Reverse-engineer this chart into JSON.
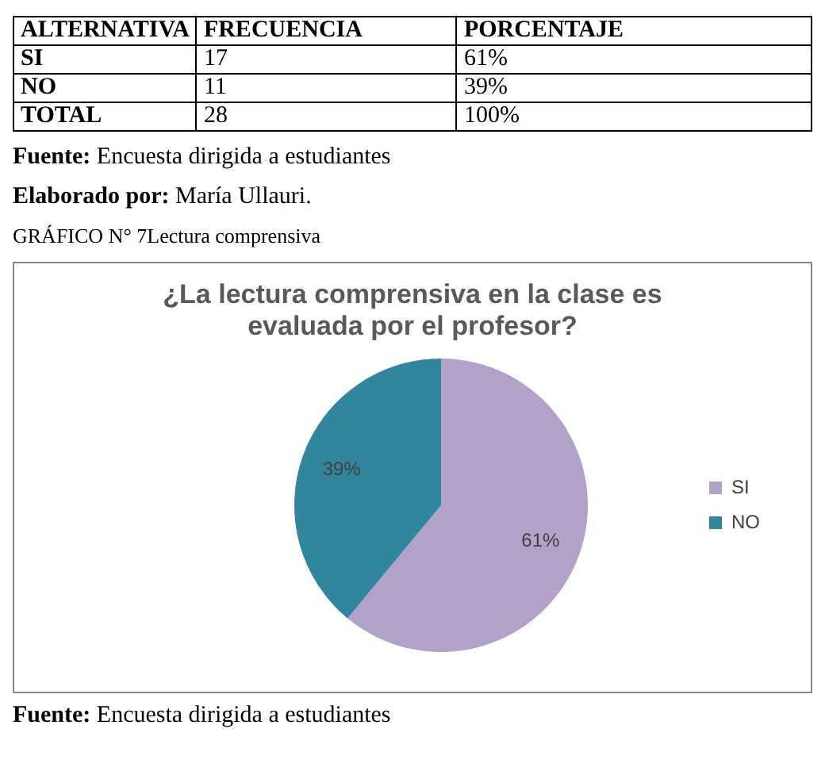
{
  "chart_data": {
    "type": "pie",
    "title": "¿La lectura comprensiva en la clase es evaluada por el profesor?",
    "categories": [
      "SI",
      "NO"
    ],
    "values": [
      61,
      39
    ],
    "colors": [
      "#b3a2c7",
      "#31859c"
    ],
    "value_labels": [
      "61%",
      "39%"
    ],
    "legend": "right",
    "annotations": [
      "ALTERNATIVA",
      "FRECUENCIA",
      "PORCENTAJE",
      "SI",
      "17",
      "61%",
      "NO",
      "11",
      "39%",
      "TOTAL",
      "28",
      "100%",
      "Fuente: Encuesta dirigida a estudiantes",
      "Elaborado por: María Ullauri.",
      "GRÁFICO N° 7Lectura comprensiva",
      "Fuente: Encuesta dirigida a estudiantes"
    ]
  }
}
